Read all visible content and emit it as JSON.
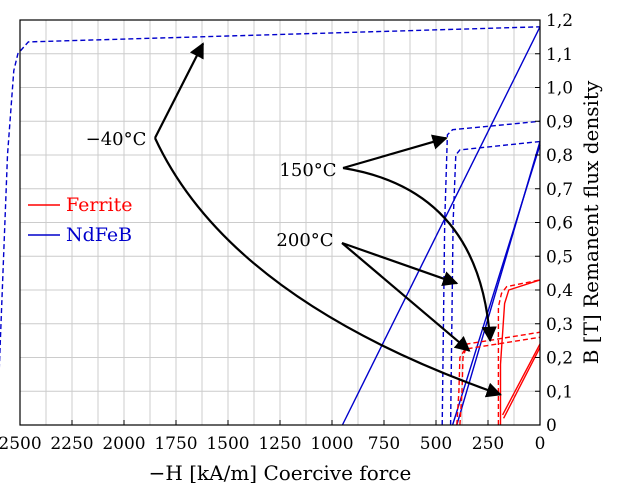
{
  "chart_data": {
    "type": "line",
    "xlabel": "−H [kA/m] Coercive force",
    "ylabel": "B [T] Remanent flux density",
    "x_reversed": true,
    "xlim": [
      2500,
      0
    ],
    "ylim": [
      0,
      1.2
    ],
    "x_ticks": [
      2500,
      2250,
      2000,
      1750,
      1500,
      1250,
      1000,
      750,
      500,
      250,
      0
    ],
    "x_tick_labels": [
      "2500",
      "2250",
      "2000",
      "1750",
      "1500",
      "1250",
      "1000",
      "750",
      "500",
      "250",
      "0"
    ],
    "y_ticks": [
      0,
      0.1,
      0.2,
      0.3,
      0.4,
      0.5,
      0.6,
      0.7,
      0.8,
      0.9,
      1.0,
      1.1,
      1.2
    ],
    "y_tick_labels": [
      "0",
      "0,1",
      "0,2",
      "0,3",
      "0,4",
      "0,5",
      "0,6",
      "0,7",
      "0,8",
      "0,9",
      "1,0",
      "1,1",
      "1,2"
    ],
    "y_axis_side": "right",
    "grid": true,
    "legend": {
      "placement": "left",
      "entries": [
        {
          "label": "Ferrite",
          "color": "#ff0000"
        },
        {
          "label": "NdFeB",
          "color": "#0000cc"
        }
      ]
    },
    "colors": {
      "ferrite": "#ff0000",
      "ndfeb": "#0000cc",
      "annotation": "#000000",
      "grid": "#cccccc"
    },
    "series": [
      {
        "material": "NdFeB",
        "temp": "-40",
        "style": "solid",
        "points": [
          [
            950,
            0
          ],
          [
            0,
            1.18
          ]
        ]
      },
      {
        "material": "NdFeB",
        "temp": "-40",
        "style": "dashed",
        "points": [
          [
            2610,
            0
          ],
          [
            2560,
            0.8
          ],
          [
            2530,
            1.05
          ],
          [
            2510,
            1.1
          ],
          [
            2460,
            1.135
          ],
          [
            0,
            1.18
          ]
        ]
      },
      {
        "material": "NdFeB",
        "temp": "150",
        "style": "solid",
        "points": [
          [
            420,
            0
          ],
          [
            0,
            0.83
          ]
        ]
      },
      {
        "material": "NdFeB",
        "temp": "150",
        "style": "dashed",
        "points": [
          [
            470,
            0
          ],
          [
            458,
            0.6
          ],
          [
            445,
            0.86
          ],
          [
            420,
            0.875
          ],
          [
            0,
            0.9
          ]
        ]
      },
      {
        "material": "NdFeB",
        "temp": "200",
        "style": "solid",
        "points": [
          [
            400,
            0
          ],
          [
            0,
            0.84
          ]
        ]
      },
      {
        "material": "NdFeB",
        "temp": "200",
        "style": "dashed",
        "points": [
          [
            430,
            0
          ],
          [
            418,
            0.6
          ],
          [
            405,
            0.8
          ],
          [
            385,
            0.815
          ],
          [
            0,
            0.84
          ]
        ]
      },
      {
        "material": "Ferrite",
        "temp": "-40",
        "style": "solid",
        "points": [
          [
            190,
            0
          ],
          [
            190,
            0.18
          ],
          [
            170,
            0.36
          ],
          [
            150,
            0.4
          ],
          [
            0,
            0.43
          ]
        ]
      },
      {
        "material": "Ferrite",
        "temp": "-40",
        "style": "dashed",
        "points": [
          [
            200,
            0
          ],
          [
            200,
            0.35
          ],
          [
            185,
            0.39
          ],
          [
            160,
            0.41
          ],
          [
            0,
            0.43
          ]
        ]
      },
      {
        "material": "Ferrite",
        "temp": "150",
        "style": "solid",
        "points": [
          [
            180,
            0.03
          ],
          [
            0,
            0.24
          ]
        ]
      },
      {
        "material": "Ferrite",
        "temp": "150",
        "style": "dashed",
        "points": [
          [
            400,
            0
          ],
          [
            390,
            0.1
          ],
          [
            385,
            0.2
          ],
          [
            360,
            0.225
          ],
          [
            0,
            0.26
          ]
        ]
      },
      {
        "material": "Ferrite",
        "temp": "200",
        "style": "solid",
        "points": [
          [
            175,
            0.02
          ],
          [
            0,
            0.23
          ]
        ]
      },
      {
        "material": "Ferrite",
        "temp": "200",
        "style": "dashed",
        "points": [
          [
            385,
            0
          ],
          [
            375,
            0.1
          ],
          [
            370,
            0.2
          ],
          [
            350,
            0.24
          ],
          [
            0,
            0.275
          ]
        ]
      }
    ],
    "annotations": [
      {
        "text": "−40°C",
        "targets": [
          [
            1620,
            1.13
          ],
          [
            190,
            0.09
          ]
        ]
      },
      {
        "text": "150°C",
        "targets": [
          [
            450,
            0.85
          ],
          [
            240,
            0.25
          ]
        ]
      },
      {
        "text": "200°C",
        "targets": [
          [
            400,
            0.42
          ],
          [
            340,
            0.22
          ]
        ]
      }
    ]
  }
}
